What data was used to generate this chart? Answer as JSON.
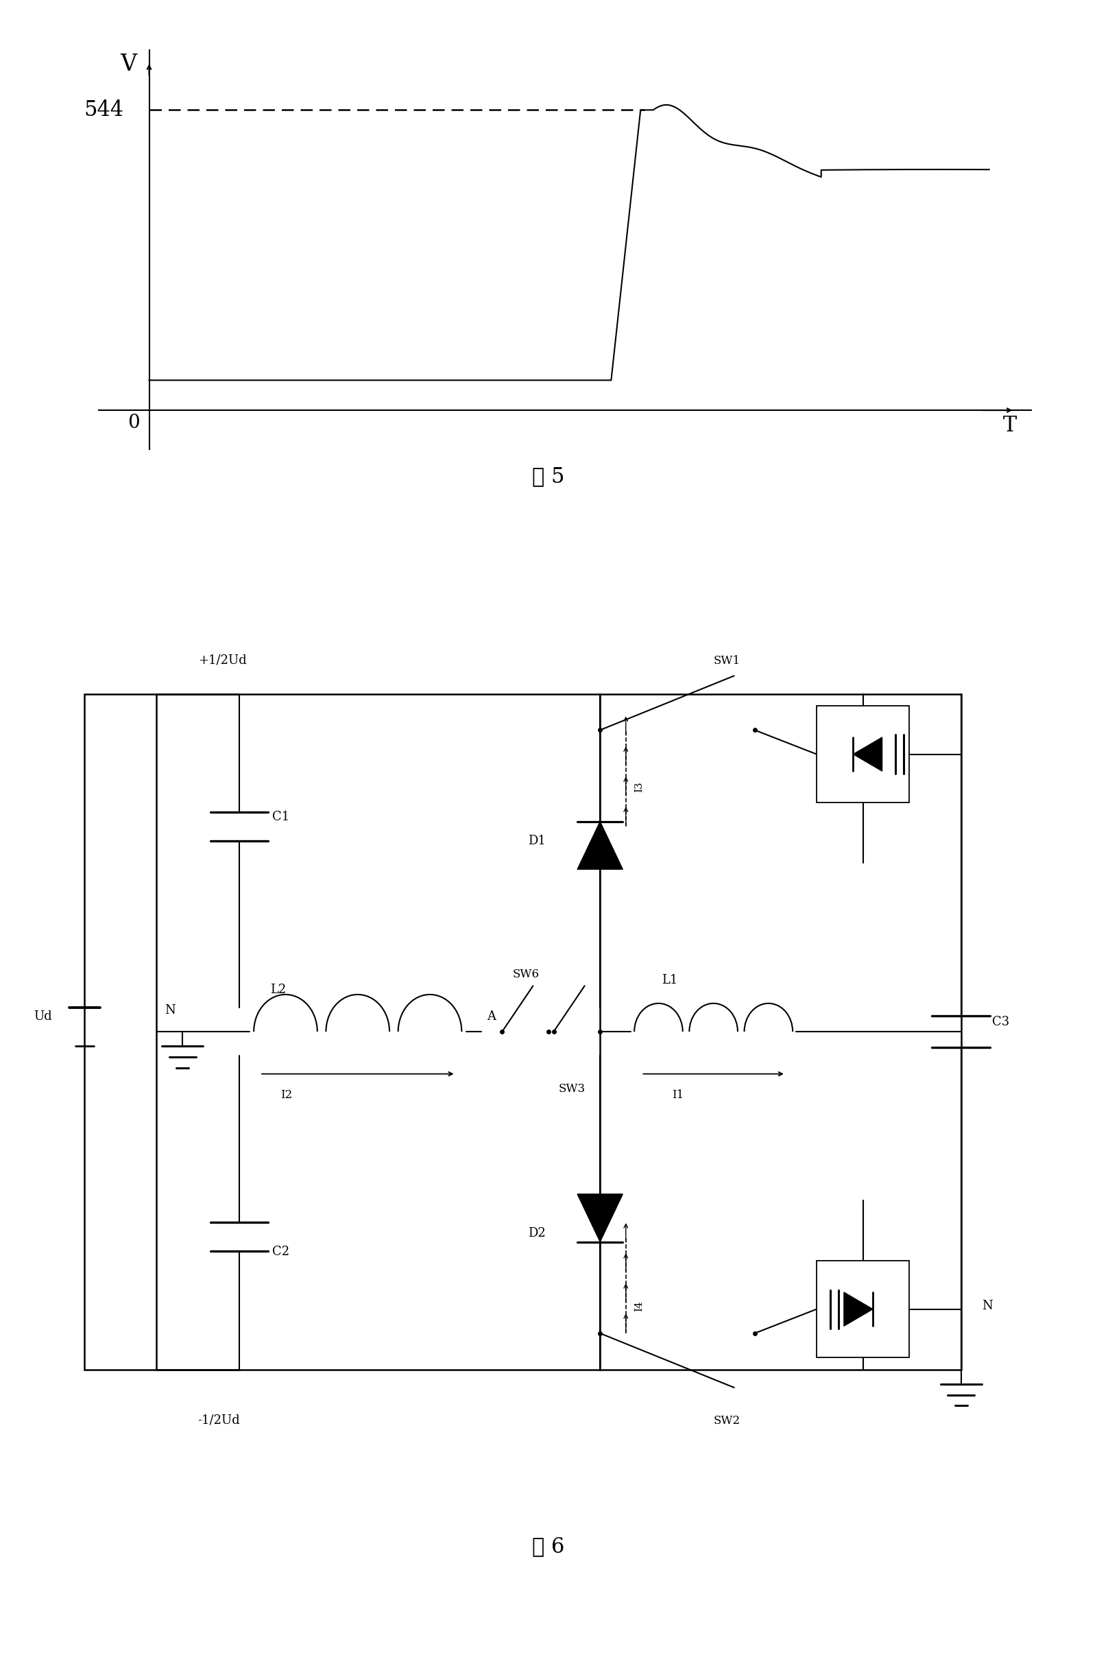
{
  "fig5_title": "图 5",
  "fig6_title": "图 6",
  "fig5_ylabel": "V",
  "fig5_xlabel": "T",
  "voltage_level": "544",
  "bg_color": "#ffffff",
  "line_color": "#000000"
}
